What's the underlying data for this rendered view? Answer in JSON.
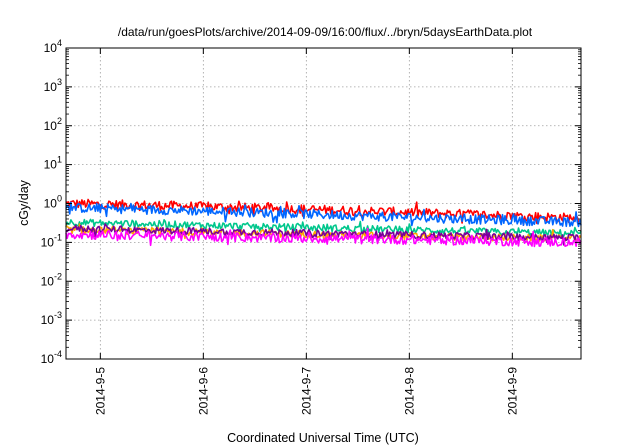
{
  "chart_data": {
    "type": "line",
    "title": "/data/run/goesPlots/archive/2014-09-09/16:00/flux/../bryn/5daysEarthData.plot",
    "xlabel": "Coordinated Universal Time (UTC)",
    "ylabel": "cGy/day",
    "y_scale": "log",
    "ylim": [
      0.0001,
      10000
    ],
    "y_ticks": [
      {
        "value": 0.0001,
        "base": "10",
        "exp": "-4"
      },
      {
        "value": 0.001,
        "base": "10",
        "exp": "-3"
      },
      {
        "value": 0.01,
        "base": "10",
        "exp": "-2"
      },
      {
        "value": 0.1,
        "base": "10",
        "exp": "-1"
      },
      {
        "value": 1,
        "base": "10",
        "exp": "0"
      },
      {
        "value": 10,
        "base": "10",
        "exp": "1"
      },
      {
        "value": 100,
        "base": "10",
        "exp": "2"
      },
      {
        "value": 1000,
        "base": "10",
        "exp": "3"
      },
      {
        "value": 10000,
        "base": "10",
        "exp": "4"
      }
    ],
    "xlim": [
      "2014-09-04 16:00",
      "2014-09-09 16:00"
    ],
    "x_ticks": [
      "2014-9-5",
      "2014-9-6",
      "2014-9-7",
      "2014-9-8",
      "2014-9-9"
    ],
    "grid": true,
    "series": [
      {
        "color": "#ff0000",
        "x": [
          "2014-09-04 16:00",
          "2014-09-05 16:00",
          "2014-09-06 16:00",
          "2014-09-07 16:00",
          "2014-09-08 16:00",
          "2014-09-09 16:00"
        ],
        "values": [
          1.0,
          0.88,
          0.75,
          0.63,
          0.52,
          0.42
        ]
      },
      {
        "color": "#0066ff",
        "x": [
          "2014-09-04 16:00",
          "2014-09-05 16:00",
          "2014-09-06 16:00",
          "2014-09-07 16:00",
          "2014-09-08 16:00",
          "2014-09-09 16:00"
        ],
        "values": [
          0.78,
          0.68,
          0.57,
          0.47,
          0.39,
          0.33
        ]
      },
      {
        "color": "#00c78c",
        "x": [
          "2014-09-04 16:00",
          "2014-09-05 16:00",
          "2014-09-06 16:00",
          "2014-09-07 16:00",
          "2014-09-08 16:00",
          "2014-09-09 16:00"
        ],
        "values": [
          0.33,
          0.29,
          0.25,
          0.22,
          0.19,
          0.17
        ]
      },
      {
        "color": "#ffa500",
        "x": [
          "2014-09-04 16:00",
          "2014-09-05 16:00",
          "2014-09-06 16:00",
          "2014-09-07 16:00",
          "2014-09-08 16:00",
          "2014-09-09 16:00"
        ],
        "values": [
          0.21,
          0.19,
          0.17,
          0.15,
          0.135,
          0.125
        ]
      },
      {
        "color": "#7a0099",
        "x": [
          "2014-09-04 16:00",
          "2014-09-05 16:00",
          "2014-09-06 16:00",
          "2014-09-07 16:00",
          "2014-09-08 16:00",
          "2014-09-09 16:00"
        ],
        "values": [
          0.23,
          0.2,
          0.18,
          0.16,
          0.145,
          0.13
        ]
      },
      {
        "color": "#ff00ff",
        "x": [
          "2014-09-04 16:00",
          "2014-09-05 16:00",
          "2014-09-06 16:00",
          "2014-09-07 16:00",
          "2014-09-08 16:00",
          "2014-09-09 16:00"
        ],
        "values": [
          0.16,
          0.145,
          0.13,
          0.12,
          0.11,
          0.1
        ]
      }
    ]
  }
}
